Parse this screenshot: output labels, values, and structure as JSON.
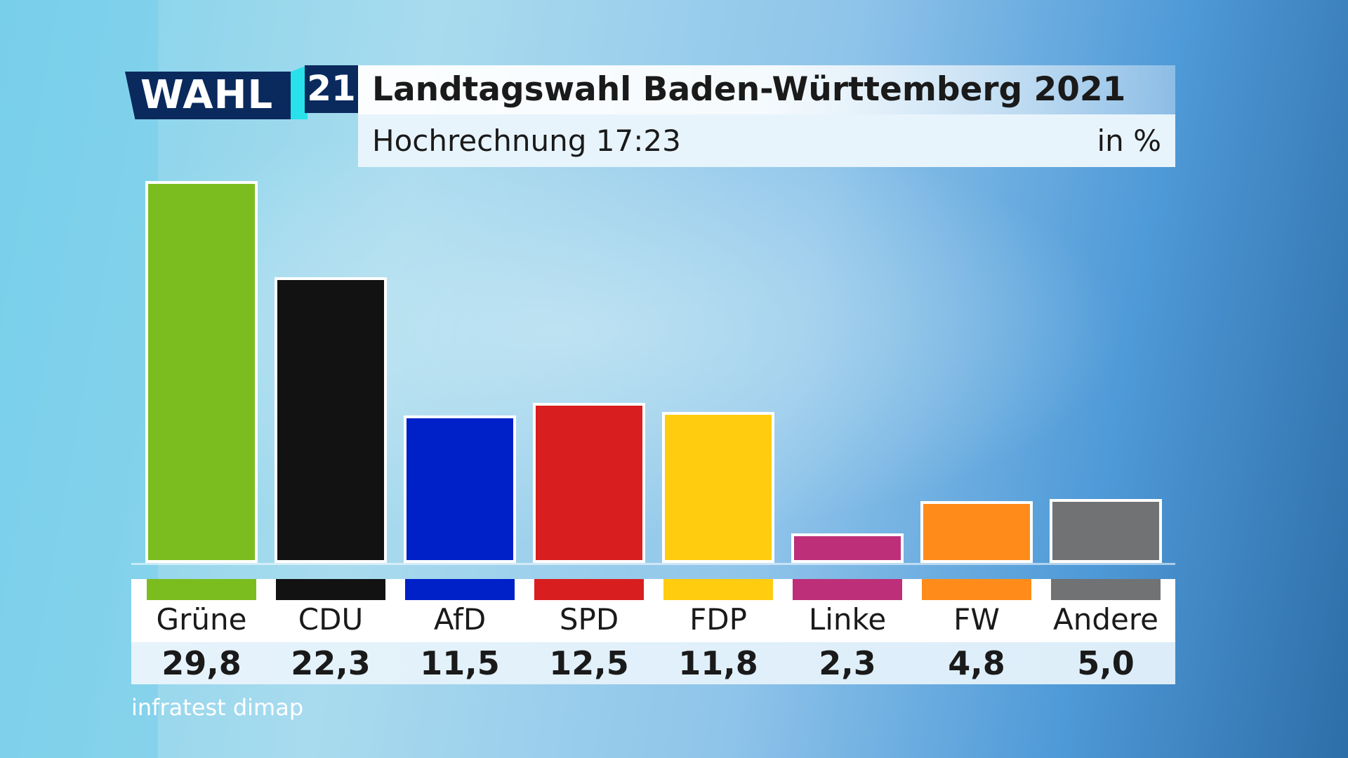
{
  "logo": {
    "word": "WAHL",
    "number": "21"
  },
  "header": {
    "title": "Landtagswahl Baden-Württemberg 2021",
    "subtitle": "Hochrechnung 17:23",
    "unit": "in %"
  },
  "source": "infratest dimap",
  "chart_data": {
    "type": "bar",
    "categories": [
      "Grüne",
      "CDU",
      "AfD",
      "SPD",
      "FDP",
      "Linke",
      "FW",
      "Andere"
    ],
    "values": [
      29.8,
      22.3,
      11.5,
      12.5,
      11.8,
      2.3,
      4.8,
      5.0
    ],
    "value_labels": [
      "29,8",
      "22,3",
      "11,5",
      "12,5",
      "11,8",
      "2,3",
      "4,8",
      "5,0"
    ],
    "colors": [
      "#7bbd1e",
      "#121212",
      "#0020c8",
      "#d81e1e",
      "#ffcc0f",
      "#bd2f78",
      "#ff8c1a",
      "#707274"
    ],
    "title": "Landtagswahl Baden-Württemberg 2021",
    "subtitle": "Hochrechnung 17:23",
    "ylabel": "in %",
    "ylim": [
      0,
      30
    ],
    "grid": false,
    "legend": "none"
  }
}
